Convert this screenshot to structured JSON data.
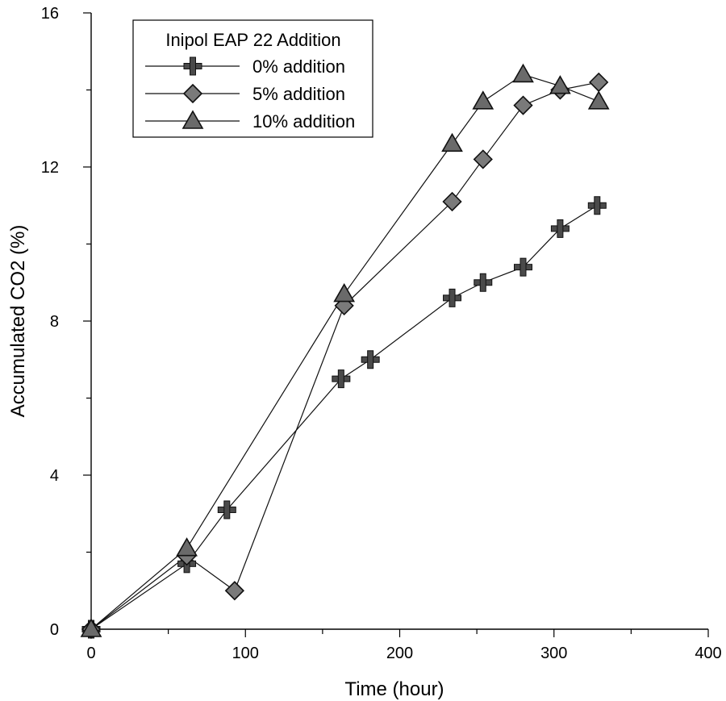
{
  "chart_data": {
    "type": "scatter",
    "title": "",
    "xlabel": "Time (hour)",
    "ylabel": "Accumulated CO2 (%)",
    "xlim": [
      0,
      400
    ],
    "ylim": [
      0,
      16
    ],
    "xticks": [
      0,
      100,
      200,
      300,
      400
    ],
    "yticks": [
      0,
      4,
      8,
      12,
      16
    ],
    "grid": false,
    "lines_connected": true,
    "legend": {
      "title": "Inipol EAP 22 Addition",
      "placement": "top-left"
    },
    "series": [
      {
        "name": "0% addition",
        "marker": "plus",
        "x": [
          0,
          62,
          88,
          162,
          181,
          234,
          254,
          280,
          304,
          328
        ],
        "y": [
          0,
          1.7,
          3.1,
          6.5,
          7.0,
          8.6,
          9.0,
          9.4,
          10.4,
          11.0
        ]
      },
      {
        "name": "5% addition",
        "marker": "diamond",
        "x": [
          0,
          62,
          93,
          164,
          234,
          254,
          280,
          304,
          329
        ],
        "y": [
          0,
          1.9,
          1.0,
          8.4,
          11.1,
          12.2,
          13.6,
          14.0,
          14.2
        ]
      },
      {
        "name": "10% addition",
        "marker": "triangle",
        "x": [
          0,
          62,
          164,
          234,
          254,
          280,
          304,
          329
        ],
        "y": [
          0,
          2.1,
          8.7,
          12.6,
          13.7,
          14.4,
          14.1,
          13.7
        ]
      }
    ]
  }
}
